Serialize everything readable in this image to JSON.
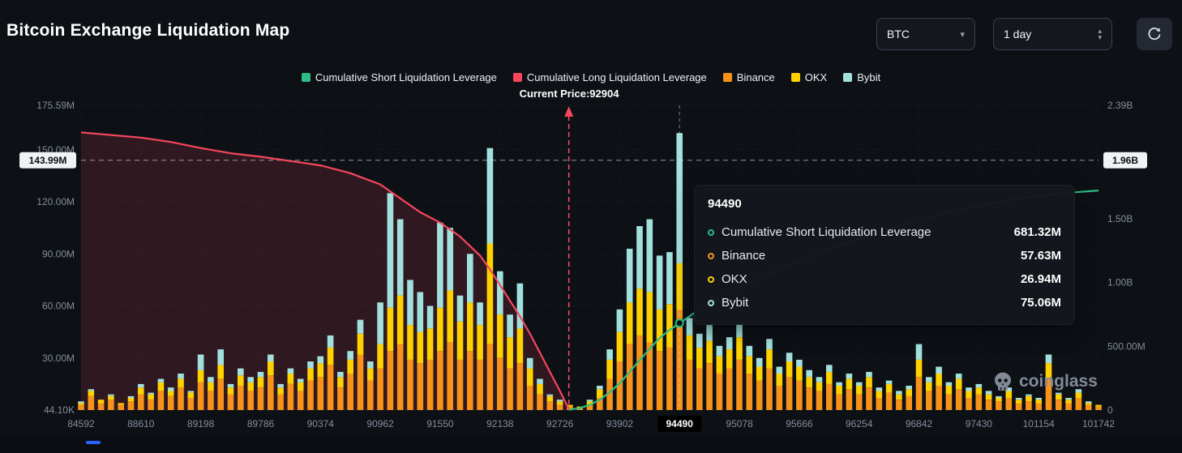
{
  "header": {
    "title": "Bitcoin Exchange Liquidation Map",
    "symbol": "BTC",
    "interval": "1 day"
  },
  "legend": [
    {
      "label": "Cumulative Short Liquidation Leverage",
      "color": "#2ebd85"
    },
    {
      "label": "Cumulative Long Liquidation Leverage",
      "color": "#f6465d"
    },
    {
      "label": "Binance",
      "color": "#f7931a"
    },
    {
      "label": "OKX",
      "color": "#ffd100"
    },
    {
      "label": "Bybit",
      "color": "#a2e0dd"
    }
  ],
  "watermark": "coinglass",
  "chart_data": {
    "type": "bar",
    "stacked": true,
    "series_names": [
      "Binance",
      "OKX",
      "Bybit"
    ],
    "colors": {
      "binance": "#f7931a",
      "okx": "#ffd100",
      "bybit": "#a2e0dd",
      "long_line": "#f6465d",
      "short_line": "#2ebd85"
    },
    "x_ticks": [
      "84592",
      "88610",
      "89198",
      "89786",
      "90374",
      "90962",
      "91550",
      "92138",
      "92726",
      "93902",
      "94490",
      "95078",
      "95666",
      "96254",
      "96842",
      "97430",
      "101154",
      "101742"
    ],
    "x_tick_highlight": "94490",
    "left_axis": {
      "max": 175.59,
      "unit": "M",
      "ticks": [
        {
          "label": "175.59M",
          "value": 175.59
        },
        {
          "label": "150.00M",
          "value": 150
        },
        {
          "label": "120.00M",
          "value": 120
        },
        {
          "label": "90.00M",
          "value": 90
        },
        {
          "label": "60.00M",
          "value": 60
        },
        {
          "label": "30.00M",
          "value": 30
        },
        {
          "label": "44.10K",
          "value": 0.0441
        }
      ]
    },
    "right_axis": {
      "max": 2390,
      "unit": "M",
      "ticks": [
        {
          "label": "2.39B",
          "value": 2390
        },
        {
          "label": "1.50B",
          "value": 1500
        },
        {
          "label": "1.00B",
          "value": 1000
        },
        {
          "label": "500.00M",
          "value": 500
        },
        {
          "label": "0",
          "value": 0
        }
      ]
    },
    "marker_line": {
      "left_label": "143.99M",
      "left_value": 143.99,
      "right_label": "1.96B",
      "right_value": 1960
    },
    "current_price": {
      "label": "Current Price:92904",
      "price": 92904,
      "index": 48.9
    },
    "hover": {
      "index": 60,
      "x_label": "94490",
      "dot_value": 681.32
    },
    "bars": [
      [
        3,
        1,
        1
      ],
      [
        8,
        3,
        1
      ],
      [
        4,
        2,
        0
      ],
      [
        6,
        2,
        1
      ],
      [
        3,
        1,
        0
      ],
      [
        5,
        2,
        1
      ],
      [
        9,
        4,
        2
      ],
      [
        6,
        3,
        1
      ],
      [
        11,
        5,
        2
      ],
      [
        8,
        3,
        2
      ],
      [
        13,
        5,
        3
      ],
      [
        7,
        3,
        1
      ],
      [
        16,
        7,
        9
      ],
      [
        11,
        5,
        3
      ],
      [
        18,
        8,
        9
      ],
      [
        9,
        4,
        2
      ],
      [
        14,
        6,
        4
      ],
      [
        11,
        5,
        3
      ],
      [
        13,
        6,
        3
      ],
      [
        20,
        8,
        4
      ],
      [
        9,
        4,
        2
      ],
      [
        15,
        6,
        3
      ],
      [
        11,
        5,
        2
      ],
      [
        17,
        7,
        4
      ],
      [
        19,
        8,
        4
      ],
      [
        26,
        10,
        7
      ],
      [
        13,
        6,
        3
      ],
      [
        21,
        8,
        5
      ],
      [
        32,
        12,
        8
      ],
      [
        17,
        7,
        4
      ],
      [
        24,
        14,
        24
      ],
      [
        34,
        25,
        66
      ],
      [
        38,
        28,
        44
      ],
      [
        29,
        20,
        26
      ],
      [
        27,
        18,
        23
      ],
      [
        29,
        18,
        13
      ],
      [
        34,
        25,
        49
      ],
      [
        39,
        30,
        36
      ],
      [
        29,
        22,
        15
      ],
      [
        34,
        28,
        28
      ],
      [
        29,
        20,
        13
      ],
      [
        38,
        58,
        55
      ],
      [
        30,
        25,
        25
      ],
      [
        24,
        18,
        13
      ],
      [
        27,
        20,
        26
      ],
      [
        14,
        10,
        6
      ],
      [
        9,
        6,
        3
      ],
      [
        5,
        3,
        1
      ],
      [
        3,
        2,
        1
      ],
      [
        2,
        1,
        0
      ],
      [
        1,
        1,
        0
      ],
      [
        3,
        2,
        1
      ],
      [
        7,
        5,
        2
      ],
      [
        18,
        11,
        6
      ],
      [
        28,
        17,
        13
      ],
      [
        38,
        24,
        31
      ],
      [
        43,
        27,
        36
      ],
      [
        39,
        29,
        42
      ],
      [
        34,
        24,
        31
      ],
      [
        36,
        25,
        30
      ],
      [
        57.63,
        26.94,
        75.06
      ],
      [
        29,
        14,
        10
      ],
      [
        24,
        12,
        8
      ],
      [
        27,
        13,
        9
      ],
      [
        21,
        10,
        6
      ],
      [
        24,
        11,
        7
      ],
      [
        29,
        13,
        8
      ],
      [
        21,
        10,
        6
      ],
      [
        17,
        8,
        5
      ],
      [
        24,
        11,
        6
      ],
      [
        14,
        7,
        4
      ],
      [
        19,
        9,
        5
      ],
      [
        17,
        8,
        4
      ],
      [
        13,
        6,
        4
      ],
      [
        11,
        5,
        3
      ],
      [
        15,
        7,
        4
      ],
      [
        9,
        5,
        2
      ],
      [
        12,
        6,
        3
      ],
      [
        9,
        5,
        2
      ],
      [
        13,
        6,
        3
      ],
      [
        7,
        4,
        2
      ],
      [
        10,
        5,
        2
      ],
      [
        6,
        3,
        2
      ],
      [
        8,
        4,
        2
      ],
      [
        19,
        10,
        9
      ],
      [
        11,
        5,
        3
      ],
      [
        14,
        7,
        4
      ],
      [
        9,
        5,
        2
      ],
      [
        12,
        6,
        3
      ],
      [
        7,
        4,
        2
      ],
      [
        9,
        4,
        2
      ],
      [
        6,
        3,
        2
      ],
      [
        5,
        2,
        1
      ],
      [
        7,
        4,
        2
      ],
      [
        4,
        2,
        1
      ],
      [
        5,
        3,
        1
      ],
      [
        4,
        2,
        1
      ],
      [
        18,
        9,
        5
      ],
      [
        6,
        3,
        1
      ],
      [
        4,
        2,
        1
      ],
      [
        7,
        3,
        2
      ],
      [
        3,
        1,
        1
      ],
      [
        2,
        1,
        0
      ]
    ],
    "long_line": [
      [
        0,
        160
      ],
      [
        3,
        158.5
      ],
      [
        6,
        157
      ],
      [
        9,
        154.5
      ],
      [
        12,
        151
      ],
      [
        15,
        148
      ],
      [
        18,
        146
      ],
      [
        21,
        143.5
      ],
      [
        24,
        141
      ],
      [
        27,
        136.5
      ],
      [
        30,
        130
      ],
      [
        32,
        122
      ],
      [
        34,
        114
      ],
      [
        36,
        108
      ],
      [
        38,
        100
      ],
      [
        40,
        89
      ],
      [
        41,
        81
      ],
      [
        42,
        72
      ],
      [
        43,
        63
      ],
      [
        44,
        54
      ],
      [
        45,
        44
      ],
      [
        46,
        33
      ],
      [
        47,
        22
      ],
      [
        48,
        11
      ],
      [
        48.9,
        0.5
      ]
    ],
    "short_line": [
      [
        48.9,
        2
      ],
      [
        50,
        15
      ],
      [
        51,
        40
      ],
      [
        52,
        80
      ],
      [
        53,
        140
      ],
      [
        54,
        210
      ],
      [
        55,
        300
      ],
      [
        56,
        390
      ],
      [
        57,
        480
      ],
      [
        58,
        565
      ],
      [
        59,
        628
      ],
      [
        60,
        681.32
      ],
      [
        62,
        790
      ],
      [
        64,
        880
      ],
      [
        66,
        960
      ],
      [
        69,
        1070
      ],
      [
        72,
        1170
      ],
      [
        75,
        1260
      ],
      [
        78,
        1340
      ],
      [
        81,
        1420
      ],
      [
        84,
        1490
      ],
      [
        87,
        1550
      ],
      [
        90,
        1600
      ],
      [
        93,
        1645
      ],
      [
        96,
        1680
      ],
      [
        99,
        1705
      ],
      [
        102,
        1722
      ]
    ],
    "tooltip": {
      "title": "94490",
      "rows": [
        {
          "name": "Cumulative Short Liquidation Leverage",
          "value": "681.32M",
          "color": "#2ebd85"
        },
        {
          "name": "Binance",
          "value": "57.63M",
          "color": "#f7931a"
        },
        {
          "name": "OKX",
          "value": "26.94M",
          "color": "#ffd100"
        },
        {
          "name": "Bybit",
          "value": "75.06M",
          "color": "#a2e0dd"
        }
      ]
    }
  }
}
